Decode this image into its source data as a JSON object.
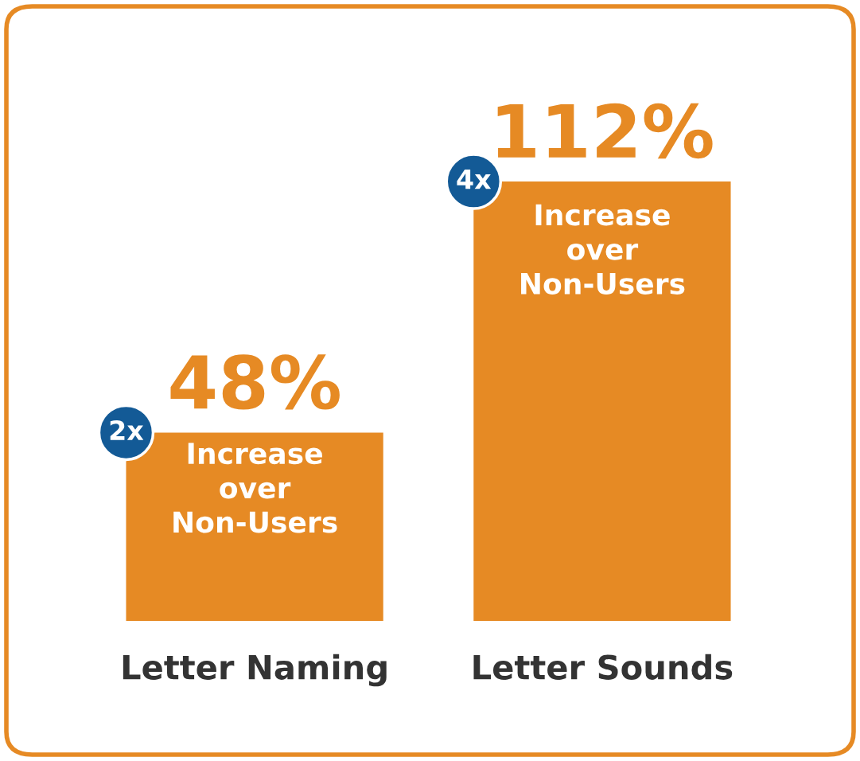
{
  "chart_data": {
    "type": "bar",
    "categories": [
      "Letter Naming",
      "Letter Sounds"
    ],
    "values": [
      48,
      112
    ],
    "value_labels": [
      "48%",
      "112%"
    ],
    "color": "#e68a24",
    "annotations": [
      "2x",
      "Increase\nover\nNon-Users",
      "4x",
      "Increase\nover\nNon-Users"
    ],
    "grid": false,
    "legend": false
  }
}
